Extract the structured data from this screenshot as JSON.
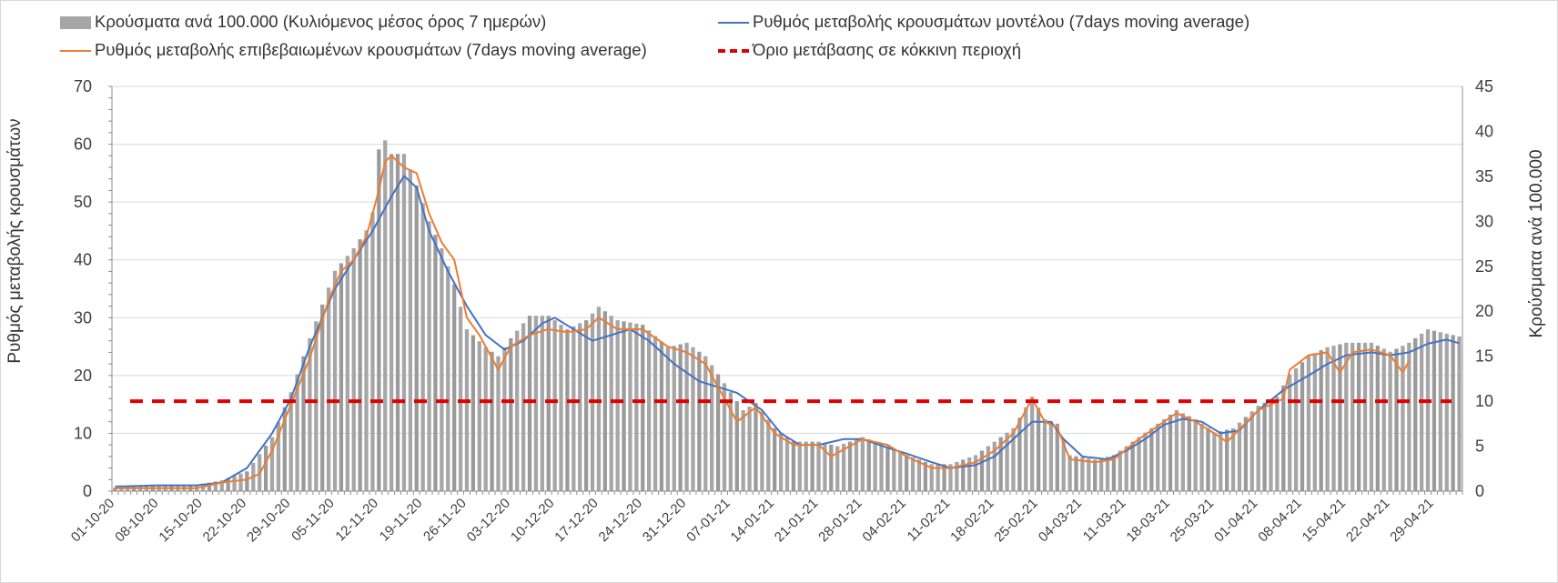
{
  "chart_data": {
    "type": "bar",
    "title": "",
    "x": {
      "start_date": "2020-10-01",
      "end_date": "2021-05-03",
      "tick_labels": [
        "01-10-20",
        "08-10-20",
        "15-10-20",
        "22-10-20",
        "29-10-20",
        "05-11-20",
        "12-11-20",
        "19-11-20",
        "26-11-20",
        "03-12-20",
        "10-12-20",
        "17-12-20",
        "24-12-20",
        "31-12-20",
        "07-01-21",
        "14-01-21",
        "21-01-21",
        "28-01-21",
        "04-02-21",
        "11-02-21",
        "18-02-21",
        "25-02-21",
        "04-03-21",
        "11-03-21",
        "18-03-21",
        "25-03-21",
        "01-04-21",
        "08-04-21",
        "15-04-21",
        "22-04-21",
        "29-04-21"
      ]
    },
    "y_left": {
      "label": "Ρυθμός μεταβολής κρουσμάτων",
      "min": 0,
      "max": 70,
      "step": 10
    },
    "y_right": {
      "label": "Κρούσματα ανά 100.000",
      "min": 0,
      "max": 45,
      "step": 5
    },
    "grid": true,
    "legend_position": "top",
    "series": [
      {
        "name": "Κρούσματα ανά 100.000 (Κυλιόμενος μέσος όρος 7 ημερών)",
        "kind": "bar",
        "axis": "right",
        "color": "#a6a6a6",
        "keypoints": [
          [
            "01-10-20",
            0.4
          ],
          [
            "08-10-20",
            0.6
          ],
          [
            "14-10-20",
            0.7
          ],
          [
            "18-10-20",
            1.2
          ],
          [
            "22-10-20",
            2.2
          ],
          [
            "26-10-20",
            6.0
          ],
          [
            "29-10-20",
            11.0
          ],
          [
            "01-11-20",
            17.0
          ],
          [
            "05-11-20",
            24.5
          ],
          [
            "08-11-20",
            27.0
          ],
          [
            "10-11-20",
            29.0
          ],
          [
            "11-11-20",
            31.0
          ],
          [
            "12-11-20",
            38.0
          ],
          [
            "13-11-20",
            39.0
          ],
          [
            "14-11-20",
            37.5
          ],
          [
            "16-11-20",
            37.5
          ],
          [
            "18-11-20",
            34.0
          ],
          [
            "20-11-20",
            30.0
          ],
          [
            "22-11-20",
            27.0
          ],
          [
            "24-11-20",
            23.0
          ],
          [
            "26-11-20",
            18.0
          ],
          [
            "29-11-20",
            16.0
          ],
          [
            "01-12-20",
            15.0
          ],
          [
            "03-12-20",
            17.0
          ],
          [
            "06-12-20",
            19.5
          ],
          [
            "09-12-20",
            19.5
          ],
          [
            "12-12-20",
            18.0
          ],
          [
            "15-12-20",
            19.0
          ],
          [
            "17-12-20",
            20.5
          ],
          [
            "20-12-20",
            19.0
          ],
          [
            "24-12-20",
            18.5
          ],
          [
            "28-12-20",
            16.0
          ],
          [
            "31-12-20",
            16.5
          ],
          [
            "03-01-21",
            15.0
          ],
          [
            "06-01-21",
            12.0
          ],
          [
            "09-01-21",
            9.0
          ],
          [
            "11-01-21",
            9.8
          ],
          [
            "14-01-21",
            7.0
          ],
          [
            "17-01-21",
            5.5
          ],
          [
            "21-01-21",
            5.5
          ],
          [
            "24-01-21",
            5.0
          ],
          [
            "28-01-21",
            6.0
          ],
          [
            "01-02-21",
            5.0
          ],
          [
            "04-02-21",
            4.0
          ],
          [
            "08-02-21",
            3.0
          ],
          [
            "11-02-21",
            3.0
          ],
          [
            "15-02-21",
            4.0
          ],
          [
            "18-02-21",
            5.5
          ],
          [
            "21-02-21",
            7.0
          ],
          [
            "24-02-21",
            10.5
          ],
          [
            "26-02-21",
            8.0
          ],
          [
            "28-02-21",
            7.5
          ],
          [
            "02-03-21",
            4.0
          ],
          [
            "06-03-21",
            3.5
          ],
          [
            "09-03-21",
            4.0
          ],
          [
            "13-03-21",
            6.0
          ],
          [
            "17-03-21",
            8.0
          ],
          [
            "19-03-21",
            9.0
          ],
          [
            "22-03-21",
            8.0
          ],
          [
            "25-03-21",
            6.5
          ],
          [
            "28-03-21",
            7.0
          ],
          [
            "01-04-21",
            9.5
          ],
          [
            "04-04-21",
            10.5
          ],
          [
            "06-04-21",
            13.0
          ],
          [
            "09-04-21",
            15.0
          ],
          [
            "12-04-21",
            16.0
          ],
          [
            "15-04-21",
            16.5
          ],
          [
            "19-04-21",
            16.5
          ],
          [
            "22-04-21",
            15.5
          ],
          [
            "25-04-21",
            16.5
          ],
          [
            "28-04-21",
            18.0
          ],
          [
            "01-05-21",
            17.5
          ],
          [
            "03-05-21",
            17.2
          ]
        ]
      },
      {
        "name": "Ρυθμός μεταβολής κρουσμάτων μοντέλου (7days moving average)",
        "kind": "line",
        "axis": "left",
        "color": "#4472c4",
        "keypoints": [
          [
            "01-10-20",
            0.8
          ],
          [
            "08-10-20",
            1.0
          ],
          [
            "14-10-20",
            1.0
          ],
          [
            "18-10-20",
            1.5
          ],
          [
            "22-10-20",
            4.0
          ],
          [
            "26-10-20",
            10.0
          ],
          [
            "29-10-20",
            16.0
          ],
          [
            "01-11-20",
            25.0
          ],
          [
            "05-11-20",
            35.0
          ],
          [
            "08-11-20",
            40.0
          ],
          [
            "11-11-20",
            45.0
          ],
          [
            "14-11-20",
            51.0
          ],
          [
            "16-11-20",
            54.5
          ],
          [
            "18-11-20",
            52.5
          ],
          [
            "20-11-20",
            45.0
          ],
          [
            "23-11-20",
            38.0
          ],
          [
            "26-11-20",
            32.0
          ],
          [
            "29-11-20",
            27.0
          ],
          [
            "02-12-20",
            24.5
          ],
          [
            "05-12-20",
            26.0
          ],
          [
            "08-12-20",
            29.0
          ],
          [
            "10-12-20",
            30.0
          ],
          [
            "13-12-20",
            28.0
          ],
          [
            "16-12-20",
            26.0
          ],
          [
            "19-12-20",
            27.0
          ],
          [
            "22-12-20",
            28.0
          ],
          [
            "25-12-20",
            26.0
          ],
          [
            "29-12-20",
            22.0
          ],
          [
            "02-01-21",
            19.0
          ],
          [
            "05-01-21",
            18.0
          ],
          [
            "08-01-21",
            17.0
          ],
          [
            "12-01-21",
            14.0
          ],
          [
            "15-01-21",
            10.0
          ],
          [
            "18-01-21",
            8.0
          ],
          [
            "21-01-21",
            8.0
          ],
          [
            "25-01-21",
            9.0
          ],
          [
            "28-01-21",
            9.0
          ],
          [
            "01-02-21",
            7.5
          ],
          [
            "04-02-21",
            6.5
          ],
          [
            "08-02-21",
            5.0
          ],
          [
            "11-02-21",
            4.0
          ],
          [
            "15-02-21",
            4.5
          ],
          [
            "18-02-21",
            6.0
          ],
          [
            "21-02-21",
            9.0
          ],
          [
            "24-02-21",
            12.0
          ],
          [
            "27-02-21",
            12.0
          ],
          [
            "01-03-21",
            9.0
          ],
          [
            "04-03-21",
            6.0
          ],
          [
            "08-03-21",
            5.5
          ],
          [
            "11-03-21",
            7.0
          ],
          [
            "14-03-21",
            9.0
          ],
          [
            "17-03-21",
            11.5
          ],
          [
            "20-03-21",
            12.5
          ],
          [
            "23-03-21",
            12.0
          ],
          [
            "26-03-21",
            10.0
          ],
          [
            "29-03-21",
            10.5
          ],
          [
            "01-04-21",
            14.0
          ],
          [
            "05-04-21",
            17.5
          ],
          [
            "09-04-21",
            20.0
          ],
          [
            "12-04-21",
            22.0
          ],
          [
            "15-04-21",
            23.5
          ],
          [
            "19-04-21",
            24.0
          ],
          [
            "22-04-21",
            23.5
          ],
          [
            "25-04-21",
            24.0
          ],
          [
            "28-04-21",
            25.5
          ],
          [
            "01-05-21",
            26.2
          ],
          [
            "03-05-21",
            25.6
          ]
        ]
      },
      {
        "name": "Ρυθμός μεταβολής επιβεβαιωμένων κρουσμάτων (7days moving average)",
        "kind": "line",
        "axis": "left",
        "color": "#ed7d31",
        "keypoints": [
          [
            "01-10-20",
            0.5
          ],
          [
            "14-10-20",
            0.5
          ],
          [
            "18-10-20",
            1.5
          ],
          [
            "22-10-20",
            2.0
          ],
          [
            "24-10-20",
            3.0
          ],
          [
            "26-10-20",
            7.0
          ],
          [
            "29-10-20",
            15.0
          ],
          [
            "01-11-20",
            23.0
          ],
          [
            "04-11-20",
            33.0
          ],
          [
            "06-11-20",
            38.0
          ],
          [
            "08-11-20",
            40.0
          ],
          [
            "10-11-20",
            44.0
          ],
          [
            "12-11-20",
            52.0
          ],
          [
            "13-11-20",
            57.0
          ],
          [
            "14-11-20",
            58.0
          ],
          [
            "16-11-20",
            56.0
          ],
          [
            "18-11-20",
            55.0
          ],
          [
            "20-11-20",
            48.0
          ],
          [
            "22-11-20",
            43.0
          ],
          [
            "24-11-20",
            40.0
          ],
          [
            "26-11-20",
            30.0
          ],
          [
            "28-11-20",
            27.0
          ],
          [
            "01-12-20",
            21.0
          ],
          [
            "03-12-20",
            25.0
          ],
          [
            "06-12-20",
            27.0
          ],
          [
            "09-12-20",
            28.0
          ],
          [
            "12-12-20",
            27.5
          ],
          [
            "15-12-20",
            28.0
          ],
          [
            "17-12-20",
            30.0
          ],
          [
            "20-12-20",
            28.0
          ],
          [
            "24-12-20",
            28.0
          ],
          [
            "28-12-20",
            25.0
          ],
          [
            "31-12-20",
            24.0
          ],
          [
            "03-01-21",
            22.0
          ],
          [
            "06-01-21",
            16.0
          ],
          [
            "08-01-21",
            12.0
          ],
          [
            "11-01-21",
            14.5
          ],
          [
            "14-01-21",
            10.0
          ],
          [
            "17-01-21",
            8.0
          ],
          [
            "21-01-21",
            8.0
          ],
          [
            "23-01-21",
            6.0
          ],
          [
            "28-01-21",
            9.0
          ],
          [
            "01-02-21",
            8.0
          ],
          [
            "04-02-21",
            6.0
          ],
          [
            "08-02-21",
            4.0
          ],
          [
            "11-02-21",
            4.0
          ],
          [
            "15-02-21",
            5.0
          ],
          [
            "18-02-21",
            7.0
          ],
          [
            "21-02-21",
            10.0
          ],
          [
            "24-02-21",
            16.0
          ],
          [
            "26-02-21",
            12.0
          ],
          [
            "28-02-21",
            11.0
          ],
          [
            "02-03-21",
            5.5
          ],
          [
            "06-03-21",
            5.0
          ],
          [
            "09-03-21",
            5.5
          ],
          [
            "13-03-21",
            9.0
          ],
          [
            "17-03-21",
            12.0
          ],
          [
            "19-03-21",
            13.5
          ],
          [
            "22-03-21",
            12.0
          ],
          [
            "25-03-21",
            10.0
          ],
          [
            "27-03-21",
            8.5
          ],
          [
            "01-04-21",
            14.0
          ],
          [
            "05-04-21",
            16.0
          ],
          [
            "06-04-21",
            21.0
          ],
          [
            "09-04-21",
            23.5
          ],
          [
            "12-04-21",
            24.0
          ],
          [
            "14-04-21",
            20.5
          ],
          [
            "16-04-21",
            24.0
          ],
          [
            "19-04-21",
            24.5
          ],
          [
            "22-04-21",
            23.5
          ],
          [
            "24-04-21",
            20.5
          ],
          [
            "25-04-21",
            22.5
          ]
        ]
      },
      {
        "name": "Όριο μετάβασης σε κόκκινη περιοχή",
        "kind": "hline",
        "axis": "right",
        "color": "#e00000",
        "value": 10
      }
    ]
  }
}
